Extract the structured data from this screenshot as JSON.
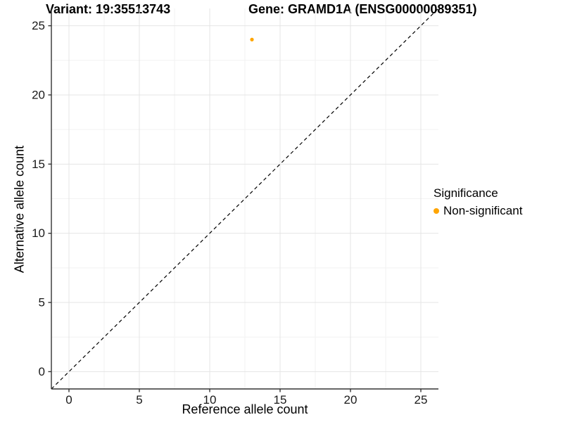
{
  "figure": {
    "title_left": "Variant: 19:35513743",
    "title_right": "Gene: GRAMD1A (ENSG00000089351)"
  },
  "chart_data": {
    "type": "scatter",
    "title": "Variant: 19:35513743    Gene: GRAMD1A (ENSG00000089351)",
    "xlabel": "Reference allele count",
    "ylabel": "Alternative allele count",
    "xlim": [
      -1.25,
      26.25
    ],
    "ylim": [
      -1.25,
      26.25
    ],
    "x_ticks": [
      0,
      5,
      10,
      15,
      20,
      25
    ],
    "y_ticks": [
      0,
      5,
      10,
      15,
      20,
      25
    ],
    "minor_ticks": [
      2.5,
      7.5,
      12.5,
      17.5,
      22.5
    ],
    "grid": true,
    "series": [
      {
        "name": "Non-significant",
        "color": "#FFA500",
        "points": [
          {
            "x": 13,
            "y": 24
          }
        ]
      }
    ],
    "reference_line": {
      "type": "identity",
      "slope": 1,
      "intercept": 0,
      "style": "dashed",
      "color": "#000000"
    },
    "legend": {
      "title": "Significance",
      "position": "right",
      "entries": [
        {
          "label": "Non-significant",
          "color": "#FFA500"
        }
      ]
    },
    "colors": {
      "grid_major": "#e4e4e4",
      "grid_minor": "#f2f2f2",
      "axis_line": "#333333",
      "tick_mark": "#333333",
      "tick_label": "#1a1a1a",
      "background": "#ffffff"
    },
    "tick_label_font_px": 17
  }
}
